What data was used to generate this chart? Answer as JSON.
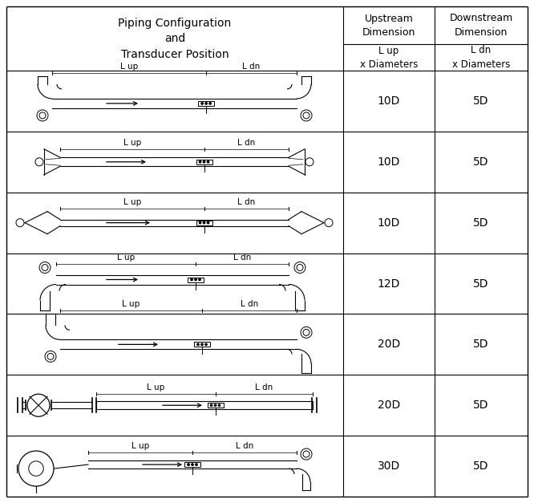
{
  "title": "Piping Configuration\nand\nTransducer Position",
  "col1_header": "Upstream\nDimension",
  "col2_header": "Downstream\nDimension",
  "col1_sub": "L up\nx Diameters",
  "col2_sub": "L dn\nx Diameters",
  "rows": [
    {
      "upstream": "10D",
      "downstream": "5D"
    },
    {
      "upstream": "10D",
      "downstream": "5D"
    },
    {
      "upstream": "10D",
      "downstream": "5D"
    },
    {
      "upstream": "12D",
      "downstream": "5D"
    },
    {
      "upstream": "20D",
      "downstream": "5D"
    },
    {
      "upstream": "20D",
      "downstream": "5D"
    },
    {
      "upstream": "30D",
      "downstream": "5D"
    }
  ],
  "line_color": "#000000",
  "text_color": "#000000",
  "pipe_color": "#000000"
}
